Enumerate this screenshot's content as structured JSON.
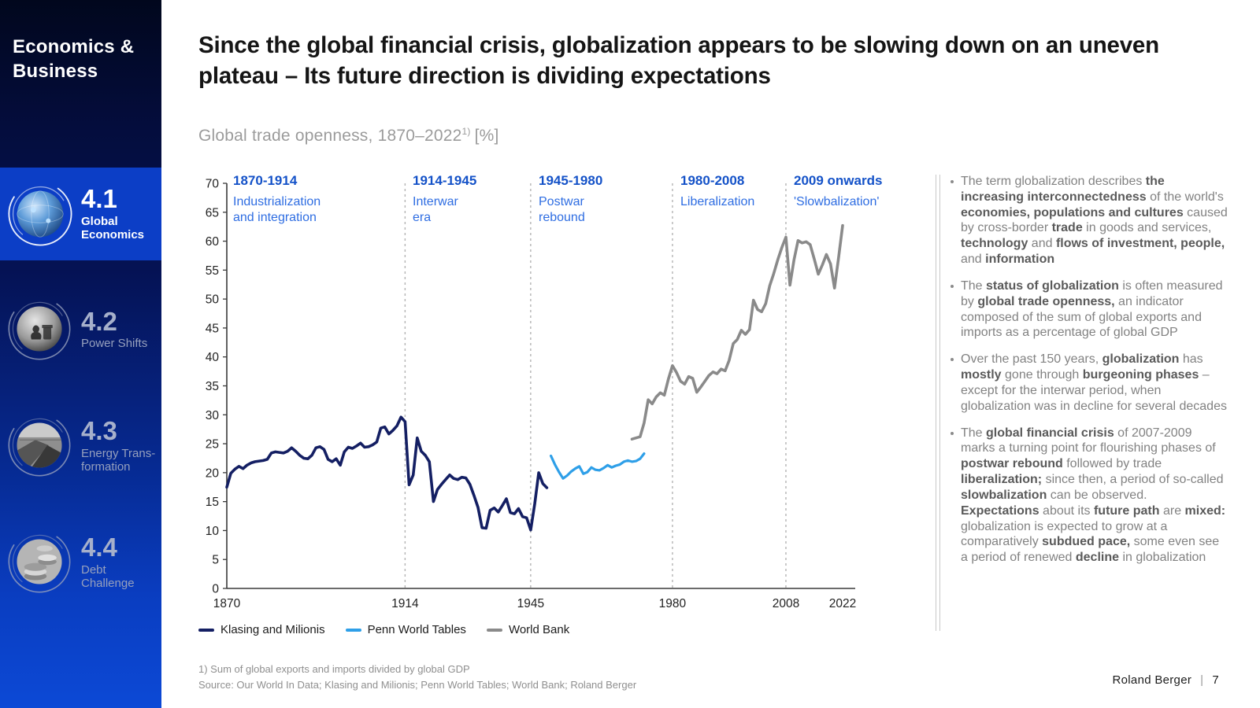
{
  "sidebar": {
    "title": "Economics & Business",
    "items": [
      {
        "number": "4.1",
        "label": "Global Economics"
      },
      {
        "number": "4.2",
        "label": "Power Shifts"
      },
      {
        "number": "4.3",
        "label": "Energy Trans-formation"
      },
      {
        "number": "4.4",
        "label": "Debt Challenge"
      }
    ]
  },
  "header": {
    "title": "Since the global financial crisis, globalization appears to be slowing down on an uneven plateau – Its future direction is dividing expectations",
    "subtitle": "Global trade openness, 1870–2022",
    "subtitle_footnote_marker": "1)",
    "subtitle_unit": "[%]"
  },
  "chart_data": {
    "type": "line",
    "title": "Global trade openness, 1870–2022 [%]",
    "xlabel": "",
    "ylabel": "",
    "ylim": [
      0,
      70
    ],
    "y_tick_step": 5,
    "x_ticks": [
      1870,
      1914,
      1945,
      1980,
      2008,
      2022
    ],
    "grid": false,
    "dividers": [
      1914,
      1945,
      1980,
      2008
    ],
    "legend_position": "bottom",
    "annotations": [
      {
        "years": "1870-1914",
        "label_lines": [
          "Industrialization",
          "and integration"
        ]
      },
      {
        "years": "1914-1945",
        "label_lines": [
          "Interwar",
          "era"
        ]
      },
      {
        "years": "1945-1980",
        "label_lines": [
          "Postwar",
          "rebound"
        ]
      },
      {
        "years": "1980-2008",
        "label_lines": [
          "Liberalization"
        ]
      },
      {
        "years": "2009 onwards",
        "label_lines": [
          "'Slowbalization'"
        ]
      }
    ],
    "series": [
      {
        "name": "Klasing and Milionis",
        "color": "#141f63",
        "start_year": 1870,
        "values": [
          17.5,
          19.9,
          20.6,
          21.1,
          20.7,
          21.3,
          21.7,
          21.9,
          22.0,
          22.1,
          22.3,
          23.4,
          23.6,
          23.5,
          23.4,
          23.7,
          24.3,
          23.7,
          23.0,
          22.5,
          22.4,
          23.0,
          24.3,
          24.5,
          24.0,
          22.3,
          21.9,
          22.4,
          21.3,
          23.6,
          24.4,
          24.2,
          24.6,
          25.1,
          24.4,
          24.5,
          24.8,
          25.3,
          27.7,
          27.9,
          26.7,
          27.3,
          28.1,
          29.6,
          28.8,
          17.9,
          19.6,
          26.0,
          23.7,
          23.0,
          21.9,
          15.0,
          17.1,
          18.0,
          18.8,
          19.6,
          19.0,
          18.8,
          19.2,
          19.1,
          18.0,
          16.1,
          14.0,
          10.5,
          10.4,
          13.5,
          13.9,
          13.2,
          14.3,
          15.5,
          13.1,
          12.9,
          13.8,
          12.4,
          12.2,
          10.1,
          14.6,
          20.0,
          18.1,
          17.4
        ]
      },
      {
        "name": "Penn World Tables",
        "color": "#2e9fe8",
        "start_year": 1950,
        "values": [
          22.9,
          21.4,
          20.1,
          19.0,
          19.5,
          20.2,
          20.7,
          21.1,
          19.8,
          20.1,
          20.9,
          20.5,
          20.4,
          20.8,
          21.3,
          20.9,
          21.2,
          21.4,
          21.9,
          22.1,
          21.9,
          22.0,
          22.4,
          23.3
        ]
      },
      {
        "name": "World Bank",
        "color": "#8a8a8a",
        "start_year": 1970,
        "values": [
          25.8,
          26.0,
          26.2,
          28.6,
          32.6,
          31.9,
          33.1,
          33.8,
          33.4,
          36.2,
          38.5,
          37.3,
          35.8,
          35.3,
          36.6,
          36.3,
          33.9,
          34.8,
          35.8,
          36.8,
          37.4,
          37.1,
          37.9,
          37.6,
          39.4,
          42.3,
          43.0,
          44.6,
          43.9,
          44.7,
          49.8,
          48.2,
          47.8,
          49.2,
          52.3,
          54.4,
          56.8,
          58.9,
          60.7,
          52.4,
          56.8,
          60.1,
          59.7,
          59.9,
          59.4,
          56.9,
          54.3,
          55.9,
          57.7,
          56.1,
          51.9,
          57.2,
          62.7
        ]
      }
    ]
  },
  "panel": {
    "bullets": [
      {
        "segments": [
          {
            "t": "The term globalization describes "
          },
          {
            "t": "the increasing interconnectedness",
            "b": true
          },
          {
            "t": " of the world's "
          },
          {
            "t": "economies, populations and cultures",
            "b": true
          },
          {
            "t": " caused by cross-border "
          },
          {
            "t": "trade",
            "b": true
          },
          {
            "t": " in goods and services, "
          },
          {
            "t": "technology",
            "b": true
          },
          {
            "t": " and "
          },
          {
            "t": "flows of investment, people,",
            "b": true
          },
          {
            "t": " and "
          },
          {
            "t": "information",
            "b": true
          }
        ]
      },
      {
        "segments": [
          {
            "t": "The "
          },
          {
            "t": "status of globalization",
            "b": true
          },
          {
            "t": " is often measured by "
          },
          {
            "t": "global trade openness,",
            "b": true
          },
          {
            "t": " an indicator composed of the sum of global exports and imports as a percentage of global GDP"
          }
        ]
      },
      {
        "segments": [
          {
            "t": "Over the past 150 years, "
          },
          {
            "t": "globalization",
            "b": true
          },
          {
            "t": " has "
          },
          {
            "t": "mostly",
            "b": true
          },
          {
            "t": " gone through "
          },
          {
            "t": "burgeoning phases",
            "b": true
          },
          {
            "t": " – except for the interwar period, when globalization was in decline for several decades"
          }
        ]
      },
      {
        "segments": [
          {
            "t": "The "
          },
          {
            "t": "global financial crisis",
            "b": true
          },
          {
            "t": " of 2007-2009 marks a turning point for flourishing phases of "
          },
          {
            "t": "postwar rebound",
            "b": true
          },
          {
            "t": " followed by trade "
          },
          {
            "t": "liberalization;",
            "b": true
          },
          {
            "t": " since then, a period of so-called "
          },
          {
            "t": "slowbalization",
            "b": true
          },
          {
            "t": " can be observed. "
          },
          {
            "t": "Expectations",
            "b": true
          },
          {
            "t": " about its "
          },
          {
            "t": "future path",
            "b": true
          },
          {
            "t": " are "
          },
          {
            "t": "mixed:",
            "b": true
          },
          {
            "t": " globalization is expected to grow at a comparatively "
          },
          {
            "t": "subdued pace,",
            "b": true
          },
          {
            "t": " some even see a period of renewed "
          },
          {
            "t": "decline",
            "b": true
          },
          {
            "t": " in globalization"
          }
        ]
      }
    ]
  },
  "footer": {
    "footnote": "1) Sum of global exports and imports divided by global GDP",
    "source": "Source: Our World In Data; Klasing and Milionis; Penn World Tables; World Bank; Roland Berger",
    "brand": "Roland Berger",
    "page": "7"
  }
}
